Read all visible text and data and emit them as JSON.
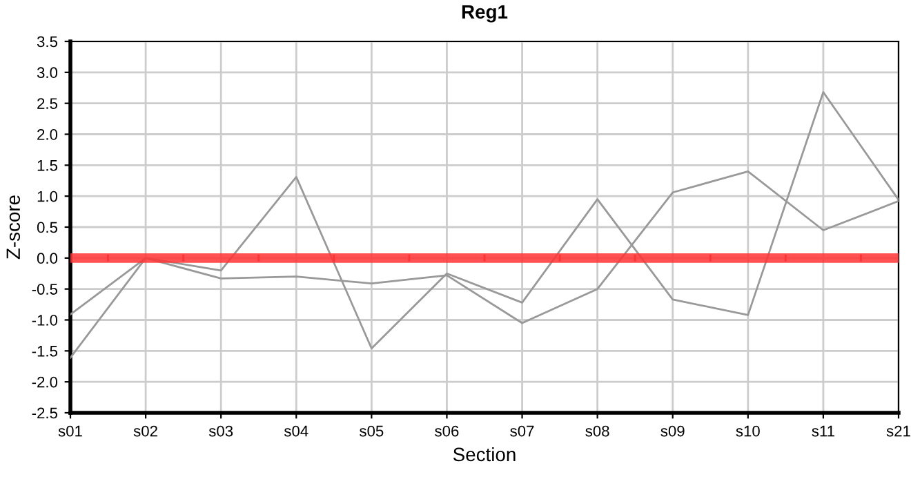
{
  "chart_data": {
    "type": "line",
    "title": "Reg1",
    "xlabel": "Section",
    "ylabel": "Z-score",
    "categories": [
      "s01",
      "s02",
      "s03",
      "s04",
      "s05",
      "s06",
      "s07",
      "s08",
      "s09",
      "s10",
      "s11",
      "s21"
    ],
    "series": [
      {
        "color": "#999999",
        "values": [
          -0.91,
          0.0,
          -0.33,
          -0.3,
          -0.41,
          -0.28,
          -1.05,
          -0.5,
          1.06,
          1.4,
          0.45,
          0.92
        ]
      },
      {
        "color": "#999999",
        "values": [
          -1.61,
          0.0,
          -0.2,
          1.31,
          -1.46,
          -0.25,
          -0.72,
          0.95,
          -0.67,
          -0.92,
          2.68,
          0.94
        ]
      }
    ],
    "ref_lines": [
      {
        "axis": "y",
        "value": 0,
        "color": "#ff3333"
      }
    ],
    "ylim": [
      -2.5,
      3.5
    ],
    "yticks": [
      {
        "value": -2.5,
        "label": "-2.5"
      },
      {
        "value": -2.0,
        "label": "-2.0"
      },
      {
        "value": -1.5,
        "label": "-1.5"
      },
      {
        "value": -1.0,
        "label": "-1.0"
      },
      {
        "value": -0.5,
        "label": "-0.5"
      },
      {
        "value": 0.0,
        "label": "0.0"
      },
      {
        "value": 0.5,
        "label": "0.5"
      },
      {
        "value": 1.0,
        "label": "1.0"
      },
      {
        "value": 1.5,
        "label": "1.5"
      },
      {
        "value": 2.0,
        "label": "2.0"
      },
      {
        "value": 2.5,
        "label": "2.5"
      },
      {
        "value": 3.0,
        "label": "3.0"
      },
      {
        "value": 3.5,
        "label": "3.5"
      }
    ],
    "grid": true,
    "marker": "none",
    "line_style": "solid"
  }
}
